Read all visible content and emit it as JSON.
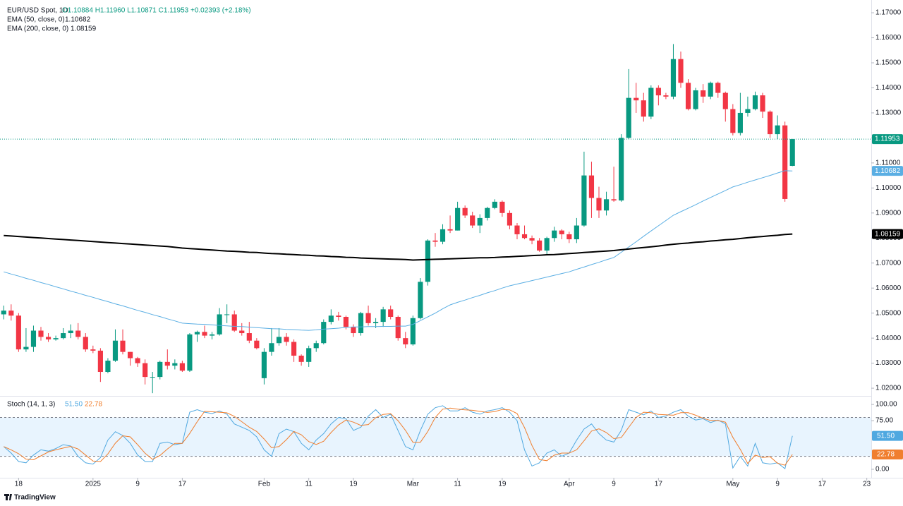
{
  "header": {
    "symbol": "EUR/USD Spot, 1D",
    "ohlc": "O1.10884 H1.11960 L1.10871 C1.11953 +0.02393 (+2.18%)",
    "brand": "TradingView"
  },
  "chart_data": [
    {
      "type": "candlestick",
      "up_color": "#089981",
      "down_color": "#f23645",
      "last_label": "1.11953",
      "grid": false,
      "xlim": [
        -0.5,
        116.6
      ],
      "ylim": [
        1.0172,
        1.1751
      ],
      "xticks": [
        {
          "value": 2,
          "label": "18"
        },
        {
          "value": 12,
          "label": "2025"
        },
        {
          "value": 18,
          "label": "9"
        },
        {
          "value": 24,
          "label": "17"
        },
        {
          "value": 35,
          "label": "Feb"
        },
        {
          "value": 41,
          "label": "11"
        },
        {
          "value": 47,
          "label": "19"
        },
        {
          "value": 55,
          "label": "Mar"
        },
        {
          "value": 61,
          "label": "11"
        },
        {
          "value": 67,
          "label": "19"
        },
        {
          "value": 76,
          "label": "Apr"
        },
        {
          "value": 82,
          "label": "9"
        },
        {
          "value": 88,
          "label": "17"
        },
        {
          "value": 98,
          "label": "May"
        },
        {
          "value": 104,
          "label": "9"
        },
        {
          "value": 110,
          "label": "17"
        },
        {
          "value": 116,
          "label": "23"
        }
      ],
      "yticks": [
        {
          "value": 1.02,
          "label": "1.02000"
        },
        {
          "value": 1.03,
          "label": "1.03000"
        },
        {
          "value": 1.04,
          "label": "1.04000"
        },
        {
          "value": 1.05,
          "label": "1.05000"
        },
        {
          "value": 1.06,
          "label": "1.06000"
        },
        {
          "value": 1.07,
          "label": "1.07000"
        },
        {
          "value": 1.08,
          "label": "1.08000"
        },
        {
          "value": 1.09,
          "label": "1.09000"
        },
        {
          "value": 1.1,
          "label": "1.10000"
        },
        {
          "value": 1.11,
          "label": "1.11000"
        },
        {
          "value": 1.12,
          "label": "1.12000"
        },
        {
          "value": 1.13,
          "label": "1.13000"
        },
        {
          "value": 1.14,
          "label": "1.14000"
        },
        {
          "value": 1.15,
          "label": "1.15000"
        },
        {
          "value": 1.16,
          "label": "1.16000"
        },
        {
          "value": 1.17,
          "label": "1.17000"
        }
      ],
      "open": [
        1.0495,
        1.051,
        1.049,
        1.0355,
        1.0365,
        1.043,
        1.0405,
        1.0395,
        1.04,
        1.042,
        1.043,
        1.0405,
        1.0355,
        1.035,
        1.0265,
        1.031,
        1.039,
        1.0345,
        1.032,
        1.03,
        1.0245,
        1.0245,
        1.0305,
        1.029,
        1.03,
        1.027,
        1.0415,
        1.0425,
        1.041,
        1.0415,
        1.0495,
        1.0495,
        1.043,
        1.042,
        1.039,
        1.024,
        1.0345,
        1.038,
        1.0405,
        1.0385,
        1.033,
        1.0305,
        1.036,
        1.038,
        1.0465,
        1.049,
        1.0485,
        1.0445,
        1.042,
        1.05,
        1.046,
        1.0465,
        1.0515,
        1.0485,
        1.04,
        1.0375,
        1.048,
        1.0625,
        1.079,
        1.0785,
        1.0835,
        1.083,
        1.092,
        1.089,
        1.085,
        1.088,
        1.092,
        1.0945,
        1.09,
        1.085,
        1.0815,
        1.08,
        1.079,
        1.075,
        1.08,
        1.083,
        1.0815,
        1.0795,
        1.085,
        1.105,
        1.096,
        1.091,
        1.0955,
        1.095,
        1.12,
        1.136,
        1.135,
        1.1285,
        1.14,
        1.137,
        1.1365,
        1.1515,
        1.142,
        1.1315,
        1.139,
        1.1365,
        1.142,
        1.138,
        1.1315,
        1.122,
        1.13,
        1.1315,
        1.137,
        1.1305,
        1.1215,
        1.125,
        1.10884
      ],
      "high": [
        1.053,
        1.0535,
        1.05,
        1.044,
        1.045,
        1.0445,
        1.042,
        1.041,
        1.044,
        1.0455,
        1.046,
        1.042,
        1.037,
        1.036,
        1.032,
        1.0435,
        1.0435,
        1.0345,
        1.0325,
        1.0315,
        1.0265,
        1.031,
        1.0355,
        1.0315,
        1.031,
        1.042,
        1.043,
        1.045,
        1.0425,
        1.052,
        1.0535,
        1.051,
        1.046,
        1.0465,
        1.04,
        1.036,
        1.044,
        1.044,
        1.042,
        1.0395,
        1.0335,
        1.037,
        1.039,
        1.0475,
        1.0515,
        1.0505,
        1.049,
        1.0455,
        1.0505,
        1.053,
        1.048,
        1.0525,
        1.053,
        1.049,
        1.0425,
        1.049,
        1.064,
        1.0795,
        1.082,
        1.0855,
        1.089,
        1.0945,
        1.093,
        1.0905,
        1.0895,
        1.0925,
        1.0955,
        1.095,
        1.091,
        1.086,
        1.085,
        1.081,
        1.08,
        1.0805,
        1.0845,
        1.0835,
        1.0825,
        1.088,
        1.1145,
        1.1105,
        1.1005,
        1.0985,
        1.1085,
        1.1215,
        1.1475,
        1.142,
        1.138,
        1.141,
        1.141,
        1.138,
        1.1575,
        1.1545,
        1.1435,
        1.14,
        1.1415,
        1.1425,
        1.1425,
        1.1385,
        1.1335,
        1.138,
        1.1365,
        1.1385,
        1.138,
        1.131,
        1.129,
        1.1265,
        1.1196
      ],
      "low": [
        1.0475,
        1.047,
        1.0345,
        1.0345,
        1.0345,
        1.039,
        1.0385,
        1.039,
        1.0395,
        1.04,
        1.0395,
        1.0345,
        1.034,
        1.0225,
        1.026,
        1.0305,
        1.0335,
        1.029,
        1.0285,
        1.0215,
        1.018,
        1.0235,
        1.0275,
        1.0275,
        1.0265,
        1.0265,
        1.0385,
        1.04,
        1.0395,
        1.041,
        1.046,
        1.0425,
        1.041,
        1.038,
        1.0355,
        1.0215,
        1.033,
        1.037,
        1.037,
        1.0305,
        1.029,
        1.0285,
        1.0345,
        1.0375,
        1.0455,
        1.047,
        1.0435,
        1.0405,
        1.041,
        1.045,
        1.044,
        1.0445,
        1.0475,
        1.039,
        1.036,
        1.037,
        1.0475,
        1.061,
        1.0765,
        1.0775,
        1.082,
        1.083,
        1.088,
        1.084,
        1.082,
        1.087,
        1.0915,
        1.0885,
        1.0835,
        1.0795,
        1.0795,
        1.0775,
        1.0745,
        1.0735,
        1.0785,
        1.0795,
        1.078,
        1.078,
        1.0845,
        1.088,
        1.088,
        1.089,
        1.0945,
        1.0945,
        1.1195,
        1.13,
        1.1265,
        1.1275,
        1.133,
        1.1355,
        1.1355,
        1.14,
        1.131,
        1.131,
        1.134,
        1.1355,
        1.136,
        1.1265,
        1.121,
        1.121,
        1.1285,
        1.131,
        1.128,
        1.12,
        1.1195,
        1.0945,
        1.10871
      ],
      "close": [
        1.051,
        1.049,
        1.0355,
        1.0365,
        1.043,
        1.0405,
        1.0395,
        1.04,
        1.042,
        1.043,
        1.0405,
        1.0355,
        1.035,
        1.0265,
        1.031,
        1.039,
        1.0345,
        1.032,
        1.03,
        1.0245,
        1.0245,
        1.0305,
        1.029,
        1.03,
        1.027,
        1.0415,
        1.0425,
        1.041,
        1.0415,
        1.0495,
        1.0495,
        1.043,
        1.042,
        1.039,
        1.036,
        1.0345,
        1.038,
        1.0405,
        1.0385,
        1.033,
        1.0305,
        1.036,
        1.038,
        1.0465,
        1.049,
        1.0485,
        1.0445,
        1.042,
        1.05,
        1.046,
        1.0465,
        1.0515,
        1.0485,
        1.04,
        1.0375,
        1.048,
        1.0625,
        1.079,
        1.0785,
        1.0835,
        1.083,
        1.092,
        1.089,
        1.085,
        1.088,
        1.092,
        1.0945,
        1.09,
        1.085,
        1.0815,
        1.08,
        1.079,
        1.075,
        1.08,
        1.083,
        1.0815,
        1.0795,
        1.085,
        1.105,
        1.096,
        1.091,
        1.0955,
        1.095,
        1.12,
        1.136,
        1.135,
        1.1285,
        1.14,
        1.137,
        1.1365,
        1.1515,
        1.142,
        1.1315,
        1.139,
        1.1365,
        1.142,
        1.138,
        1.1315,
        1.122,
        1.13,
        1.1315,
        1.137,
        1.1305,
        1.1215,
        1.125,
        1.0956,
        1.11953
      ],
      "series": [
        {
          "name": "EMA (50, close, 0)",
          "color": "#5aaee3",
          "last_label": "1.10682",
          "values": [
            1.0665,
            1.0656,
            1.0648,
            1.0639,
            1.0631,
            1.0622,
            1.0614,
            1.0605,
            1.0597,
            1.0588,
            1.058,
            1.0571,
            1.0563,
            1.0554,
            1.0546,
            1.0537,
            1.0529,
            1.052,
            1.0511,
            1.0503,
            1.0494,
            1.0486,
            1.0477,
            1.0469,
            1.046,
            1.0458,
            1.0456,
            1.0455,
            1.0453,
            1.0451,
            1.0449,
            1.0447,
            1.0446,
            1.0444,
            1.0442,
            1.044,
            1.0438,
            1.0437,
            1.0435,
            1.0434,
            1.0432,
            1.0431,
            1.0433,
            1.0436,
            1.0438,
            1.044,
            1.0443,
            1.0445,
            1.0445,
            1.0446,
            1.0446,
            1.0447,
            1.0447,
            1.0448,
            1.0448,
            1.0455,
            1.047,
            1.0485,
            1.05,
            1.0517,
            1.0533,
            1.0543,
            1.0552,
            1.0562,
            1.0571,
            1.0581,
            1.059,
            1.06,
            1.0609,
            1.0616,
            1.0623,
            1.063,
            1.0637,
            1.0644,
            1.0651,
            1.0658,
            1.0665,
            1.0675,
            1.0684,
            1.0694,
            1.0703,
            1.0713,
            1.0722,
            1.0743,
            1.0764,
            1.0785,
            1.0807,
            1.0828,
            1.0849,
            1.087,
            1.0891,
            1.0905,
            1.0919,
            1.0933,
            1.0948,
            1.0962,
            1.0976,
            1.099,
            1.1004,
            1.1013,
            1.1023,
            1.1032,
            1.1041,
            1.105,
            1.106,
            1.1069,
            1.10682
          ]
        },
        {
          "name": "EMA (200, close, 0)",
          "color": "#000000",
          "last_label": "1.08159",
          "values": [
            1.081,
            1.0808,
            1.0806,
            1.0804,
            1.0802,
            1.08,
            1.0798,
            1.0796,
            1.0794,
            1.0792,
            1.079,
            1.0788,
            1.0786,
            1.0784,
            1.0782,
            1.078,
            1.0778,
            1.0776,
            1.0774,
            1.0772,
            1.077,
            1.0768,
            1.0766,
            1.0763,
            1.076,
            1.0758,
            1.0756,
            1.0754,
            1.0752,
            1.075,
            1.0748,
            1.0747,
            1.0745,
            1.0743,
            1.0742,
            1.074,
            1.0738,
            1.0737,
            1.0735,
            1.0734,
            1.0732,
            1.0731,
            1.0729,
            1.0728,
            1.0726,
            1.0725,
            1.0723,
            1.0722,
            1.072,
            1.0719,
            1.0718,
            1.0717,
            1.0716,
            1.0715,
            1.0714,
            1.0712,
            1.0713,
            1.0714,
            1.0715,
            1.0716,
            1.0717,
            1.0718,
            1.0719,
            1.072,
            1.0721,
            1.0721,
            1.0722,
            1.0724,
            1.0725,
            1.0727,
            1.0728,
            1.073,
            1.0731,
            1.0733,
            1.0734,
            1.0736,
            1.0738,
            1.074,
            1.0742,
            1.0744,
            1.0746,
            1.0748,
            1.075,
            1.0753,
            1.0756,
            1.0759,
            1.0762,
            1.0765,
            1.0768,
            1.0772,
            1.0775,
            1.0778,
            1.078,
            1.0783,
            1.0785,
            1.0788,
            1.079,
            1.0793,
            1.0795,
            1.0798,
            1.0801,
            1.0804,
            1.0806,
            1.0809,
            1.0811,
            1.0814,
            1.08159
          ]
        }
      ]
    },
    {
      "type": "line",
      "title": "Stoch (14, 1, 3)",
      "xlim": [
        -0.5,
        116.6
      ],
      "ylim": [
        -12,
        111
      ],
      "band": [
        20,
        80
      ],
      "band_color": "#2196f3",
      "yticks": [
        {
          "value": 100,
          "label": "100.00"
        },
        {
          "value": 75,
          "label": "75.00"
        },
        {
          "value": 0,
          "label": "0.00"
        }
      ],
      "series": [
        {
          "color": "#4fa8e0",
          "last_label": "51.50",
          "values": [
            35,
            25,
            12,
            10,
            22,
            30,
            28,
            32,
            38,
            36,
            20,
            10,
            8,
            18,
            45,
            58,
            52,
            40,
            22,
            12,
            12,
            40,
            42,
            38,
            40,
            88,
            92,
            88,
            86,
            90,
            85,
            70,
            65,
            60,
            50,
            30,
            20,
            55,
            62,
            58,
            40,
            30,
            45,
            55,
            70,
            80,
            78,
            60,
            65,
            82,
            92,
            80,
            85,
            60,
            35,
            30,
            60,
            85,
            95,
            98,
            90,
            90,
            95,
            88,
            85,
            90,
            92,
            95,
            88,
            75,
            30,
            5,
            10,
            25,
            30,
            20,
            25,
            45,
            62,
            70,
            55,
            45,
            42,
            60,
            92,
            88,
            84,
            90,
            80,
            82,
            88,
            92,
            82,
            76,
            78,
            72,
            76,
            70,
            2,
            20,
            5,
            40,
            10,
            8,
            10,
            1,
            51.5
          ]
        },
        {
          "color": "#f07f2f",
          "last_label": "22.78",
          "values": [
            35,
            30,
            24,
            15.7,
            14.7,
            20.7,
            26.7,
            30,
            32.7,
            35.3,
            31.3,
            22,
            12.7,
            12,
            23.7,
            40.3,
            51.7,
            50,
            38,
            24.7,
            15.3,
            21.3,
            31.3,
            40,
            40,
            55.3,
            73.3,
            89.3,
            88.7,
            88,
            87,
            81.7,
            73.3,
            65,
            58.3,
            46.7,
            33.3,
            35,
            45.7,
            58.3,
            53.3,
            42.7,
            38.3,
            43.3,
            56.7,
            68.3,
            76,
            72.7,
            67.7,
            69,
            79.7,
            84.7,
            85.7,
            75,
            60,
            41.7,
            41.7,
            58.3,
            80,
            92.7,
            94.3,
            92.7,
            91.7,
            91,
            89.3,
            87.7,
            89,
            92.3,
            91.7,
            86,
            64.3,
            36.7,
            15,
            13.3,
            21.7,
            25,
            25,
            30,
            44,
            59,
            62.3,
            56.7,
            47.3,
            49,
            64.7,
            80,
            88,
            87.3,
            84.7,
            84,
            83.3,
            87.3,
            87.3,
            83.3,
            78.7,
            75.3,
            75.3,
            72.7,
            49.3,
            30.7,
            9,
            21.7,
            18.3,
            19.3,
            9.3,
            6.3,
            22.78
          ]
        }
      ]
    }
  ]
}
